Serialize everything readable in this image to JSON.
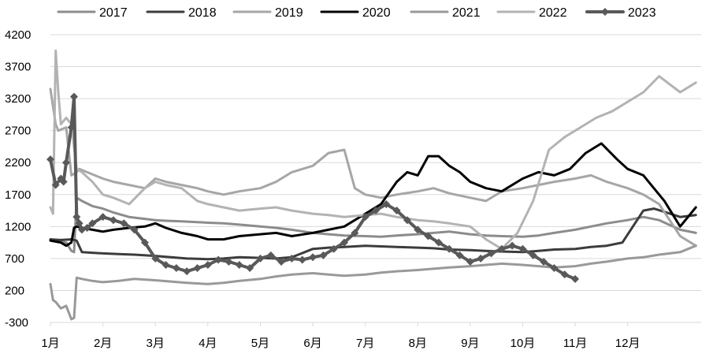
{
  "chart_data": {
    "type": "line",
    "title": "",
    "xlabel": "",
    "ylabel": "",
    "ylim": [
      -300,
      4200
    ],
    "y_ticks": [
      -300,
      200,
      700,
      1200,
      1700,
      2200,
      2700,
      3200,
      3700,
      4200
    ],
    "x_range": [
      0,
      12.4
    ],
    "x_ticks": [
      {
        "pos": 0,
        "label": "1月"
      },
      {
        "pos": 1,
        "label": "2月"
      },
      {
        "pos": 2,
        "label": "3月"
      },
      {
        "pos": 3,
        "label": "4月"
      },
      {
        "pos": 4,
        "label": "5月"
      },
      {
        "pos": 5,
        "label": "6月"
      },
      {
        "pos": 6,
        "label": "7月"
      },
      {
        "pos": 7,
        "label": "8月"
      },
      {
        "pos": 8,
        "label": "9月"
      },
      {
        "pos": 9,
        "label": "10月"
      },
      {
        "pos": 10,
        "label": "11月"
      },
      {
        "pos": 11,
        "label": "12月"
      }
    ],
    "grid": "horizontal",
    "legend_position": "top",
    "series": [
      {
        "name": "2017",
        "color": "#8c8c8c",
        "width": 3,
        "markers": false,
        "x": [
          0,
          0.1,
          0.2,
          0.3,
          0.4,
          0.45,
          0.5,
          0.6,
          0.8,
          1.0,
          1.2,
          1.5,
          1.8,
          2.0,
          2.2,
          2.5,
          2.8,
          3.0,
          3.3,
          3.6,
          4.0,
          4.3,
          4.6,
          5.0,
          5.3,
          5.6,
          6.0,
          6.3,
          6.6,
          7.0,
          7.3,
          7.6,
          8.0,
          8.3,
          8.6,
          9.0,
          9.3,
          9.6,
          10.0,
          10.3,
          10.6,
          11.0,
          11.3,
          11.6,
          12.0,
          12.3
        ],
        "y": [
          1000,
          980,
          960,
          950,
          820,
          800,
          1650,
          1600,
          1520,
          1480,
          1420,
          1350,
          1320,
          1300,
          1290,
          1280,
          1270,
          1260,
          1250,
          1230,
          1200,
          1180,
          1150,
          1100,
          1080,
          1060,
          1050,
          1040,
          1060,
          1080,
          1100,
          1120,
          1080,
          1060,
          1050,
          1040,
          1060,
          1100,
          1150,
          1200,
          1250,
          1300,
          1350,
          1300,
          1150,
          1100
        ]
      },
      {
        "name": "2018",
        "color": "#3c3c3c",
        "width": 3,
        "markers": false,
        "x": [
          0,
          0.2,
          0.4,
          0.5,
          0.6,
          0.8,
          1.0,
          1.3,
          1.6,
          2.0,
          2.3,
          2.6,
          3.0,
          3.3,
          3.6,
          4.0,
          4.3,
          4.6,
          5.0,
          5.3,
          5.6,
          6.0,
          6.3,
          6.6,
          7.0,
          7.3,
          7.6,
          8.0,
          8.3,
          8.6,
          9.0,
          9.3,
          9.6,
          10.0,
          10.3,
          10.6,
          10.9,
          11.1,
          11.3,
          11.5,
          11.7,
          12.0,
          12.3
        ],
        "y": [
          1000,
          990,
          1000,
          980,
          800,
          790,
          780,
          770,
          760,
          740,
          720,
          700,
          690,
          700,
          720,
          710,
          700,
          720,
          850,
          870,
          880,
          900,
          890,
          880,
          870,
          860,
          840,
          830,
          820,
          810,
          800,
          820,
          840,
          850,
          880,
          900,
          950,
          1200,
          1450,
          1480,
          1430,
          1350,
          1380
        ]
      },
      {
        "name": "2019",
        "color": "#a6a6a6",
        "width": 3,
        "markers": false,
        "x": [
          0,
          0.1,
          0.15,
          0.3,
          0.4,
          0.5,
          0.55,
          0.7,
          1.0,
          1.2,
          1.5,
          1.8,
          2.0,
          2.2,
          2.5,
          2.8,
          3.0,
          3.3,
          3.6,
          4.0,
          4.3,
          4.6,
          5.0,
          5.3,
          5.6,
          5.8,
          6.0,
          6.3,
          6.6,
          7.0,
          7.3,
          7.6,
          8.0,
          8.3,
          8.6,
          9.0,
          9.3,
          9.6,
          10.0,
          10.3,
          10.6,
          11.0,
          11.3,
          11.6,
          12.0,
          12.3
        ],
        "y": [
          3350,
          2800,
          2700,
          2750,
          2000,
          2050,
          2100,
          2050,
          1950,
          1900,
          1850,
          1800,
          1950,
          1900,
          1850,
          1800,
          1750,
          1700,
          1750,
          1800,
          1900,
          2050,
          2150,
          2350,
          2400,
          1800,
          1700,
          1650,
          1700,
          1750,
          1800,
          1720,
          1650,
          1600,
          1750,
          1800,
          1850,
          1900,
          1950,
          2000,
          1900,
          1800,
          1700,
          1550,
          1050,
          900
        ]
      },
      {
        "name": "2020",
        "color": "#000000",
        "width": 3,
        "markers": false,
        "x": [
          0,
          0.2,
          0.3,
          0.4,
          0.45,
          0.5,
          0.6,
          0.8,
          1.0,
          1.2,
          1.5,
          1.8,
          2.0,
          2.2,
          2.5,
          2.8,
          3.0,
          3.3,
          3.6,
          4.0,
          4.3,
          4.6,
          5.0,
          5.3,
          5.6,
          6.0,
          6.3,
          6.6,
          6.8,
          7.0,
          7.2,
          7.4,
          7.6,
          7.8,
          8.0,
          8.3,
          8.6,
          9.0,
          9.3,
          9.6,
          9.9,
          10.2,
          10.5,
          10.8,
          11.0,
          11.3,
          11.5,
          11.7,
          12.0,
          12.3
        ],
        "y": [
          980,
          950,
          900,
          950,
          1180,
          1200,
          1180,
          1150,
          1120,
          1150,
          1180,
          1200,
          1250,
          1180,
          1100,
          1050,
          1000,
          1000,
          1050,
          1080,
          1100,
          1050,
          1100,
          1150,
          1200,
          1400,
          1550,
          1900,
          2050,
          2000,
          2300,
          2300,
          2150,
          2050,
          1900,
          1800,
          1750,
          1950,
          2050,
          2000,
          2100,
          2350,
          2500,
          2250,
          2100,
          2000,
          1800,
          1600,
          1200,
          1500
        ]
      },
      {
        "name": "2021",
        "color": "#999999",
        "width": 3,
        "markers": false,
        "x": [
          0,
          0.05,
          0.1,
          0.2,
          0.3,
          0.4,
          0.45,
          0.5,
          0.6,
          0.8,
          1.0,
          1.3,
          1.6,
          2.0,
          2.3,
          2.6,
          3.0,
          3.3,
          3.6,
          4.0,
          4.3,
          4.6,
          5.0,
          5.3,
          5.6,
          6.0,
          6.3,
          6.6,
          7.0,
          7.3,
          7.6,
          8.0,
          8.3,
          8.6,
          9.0,
          9.3,
          9.6,
          10.0,
          10.3,
          10.6,
          11.0,
          11.3,
          11.6,
          12.0,
          12.3
        ],
        "y": [
          300,
          50,
          20,
          -80,
          -40,
          -250,
          -230,
          400,
          380,
          350,
          330,
          350,
          380,
          360,
          340,
          320,
          300,
          320,
          350,
          380,
          420,
          450,
          470,
          450,
          430,
          450,
          480,
          500,
          520,
          540,
          560,
          580,
          600,
          620,
          600,
          580,
          560,
          580,
          620,
          650,
          700,
          720,
          760,
          800,
          900
        ]
      },
      {
        "name": "2022",
        "color": "#b3b3b3",
        "width": 3,
        "markers": false,
        "x": [
          0,
          0.05,
          0.1,
          0.15,
          0.2,
          0.3,
          0.4,
          0.5,
          0.6,
          0.8,
          1.0,
          1.2,
          1.5,
          1.8,
          2.0,
          2.2,
          2.5,
          2.8,
          3.0,
          3.3,
          3.6,
          4.0,
          4.3,
          4.6,
          5.0,
          5.3,
          5.6,
          6.0,
          6.3,
          6.6,
          7.0,
          7.3,
          7.6,
          8.0,
          8.3,
          8.6,
          8.9,
          9.2,
          9.5,
          9.8,
          10.1,
          10.4,
          10.7,
          11.0,
          11.3,
          11.6,
          12.0,
          12.3
        ],
        "y": [
          1500,
          1400,
          3950,
          3300,
          2800,
          2900,
          2800,
          2100,
          2050,
          1900,
          1700,
          1650,
          1550,
          1800,
          1900,
          1850,
          1800,
          1600,
          1550,
          1500,
          1450,
          1480,
          1500,
          1450,
          1400,
          1380,
          1350,
          1380,
          1400,
          1350,
          1300,
          1280,
          1250,
          1200,
          1000,
          850,
          1100,
          1600,
          2400,
          2600,
          2750,
          2900,
          3000,
          3150,
          3300,
          3550,
          3300,
          3450
        ]
      },
      {
        "name": "2023",
        "color": "#595959",
        "width": 4,
        "markers": true,
        "x": [
          0,
          0.1,
          0.2,
          0.25,
          0.3,
          0.4,
          0.45,
          0.5,
          0.55,
          0.6,
          0.7,
          0.8,
          1.0,
          1.2,
          1.4,
          1.6,
          1.8,
          2.0,
          2.2,
          2.4,
          2.6,
          2.8,
          3.0,
          3.2,
          3.4,
          3.6,
          3.8,
          4.0,
          4.2,
          4.4,
          4.6,
          4.8,
          5.0,
          5.2,
          5.4,
          5.6,
          5.8,
          6.0,
          6.2,
          6.4,
          6.6,
          6.8,
          7.0,
          7.2,
          7.4,
          7.6,
          7.8,
          8.0,
          8.2,
          8.4,
          8.6,
          8.8,
          9.0,
          9.2,
          9.4,
          9.6,
          9.8,
          10.0
        ],
        "y": [
          2250,
          1850,
          1950,
          1900,
          2200,
          2750,
          3230,
          1350,
          1250,
          1150,
          1180,
          1250,
          1350,
          1300,
          1250,
          1150,
          950,
          700,
          600,
          550,
          500,
          550,
          600,
          680,
          650,
          600,
          550,
          700,
          750,
          650,
          700,
          680,
          720,
          750,
          850,
          950,
          1100,
          1350,
          1450,
          1550,
          1450,
          1300,
          1150,
          1050,
          950,
          850,
          750,
          650,
          700,
          780,
          850,
          900,
          850,
          750,
          650,
          550,
          450,
          380
        ]
      }
    ]
  }
}
